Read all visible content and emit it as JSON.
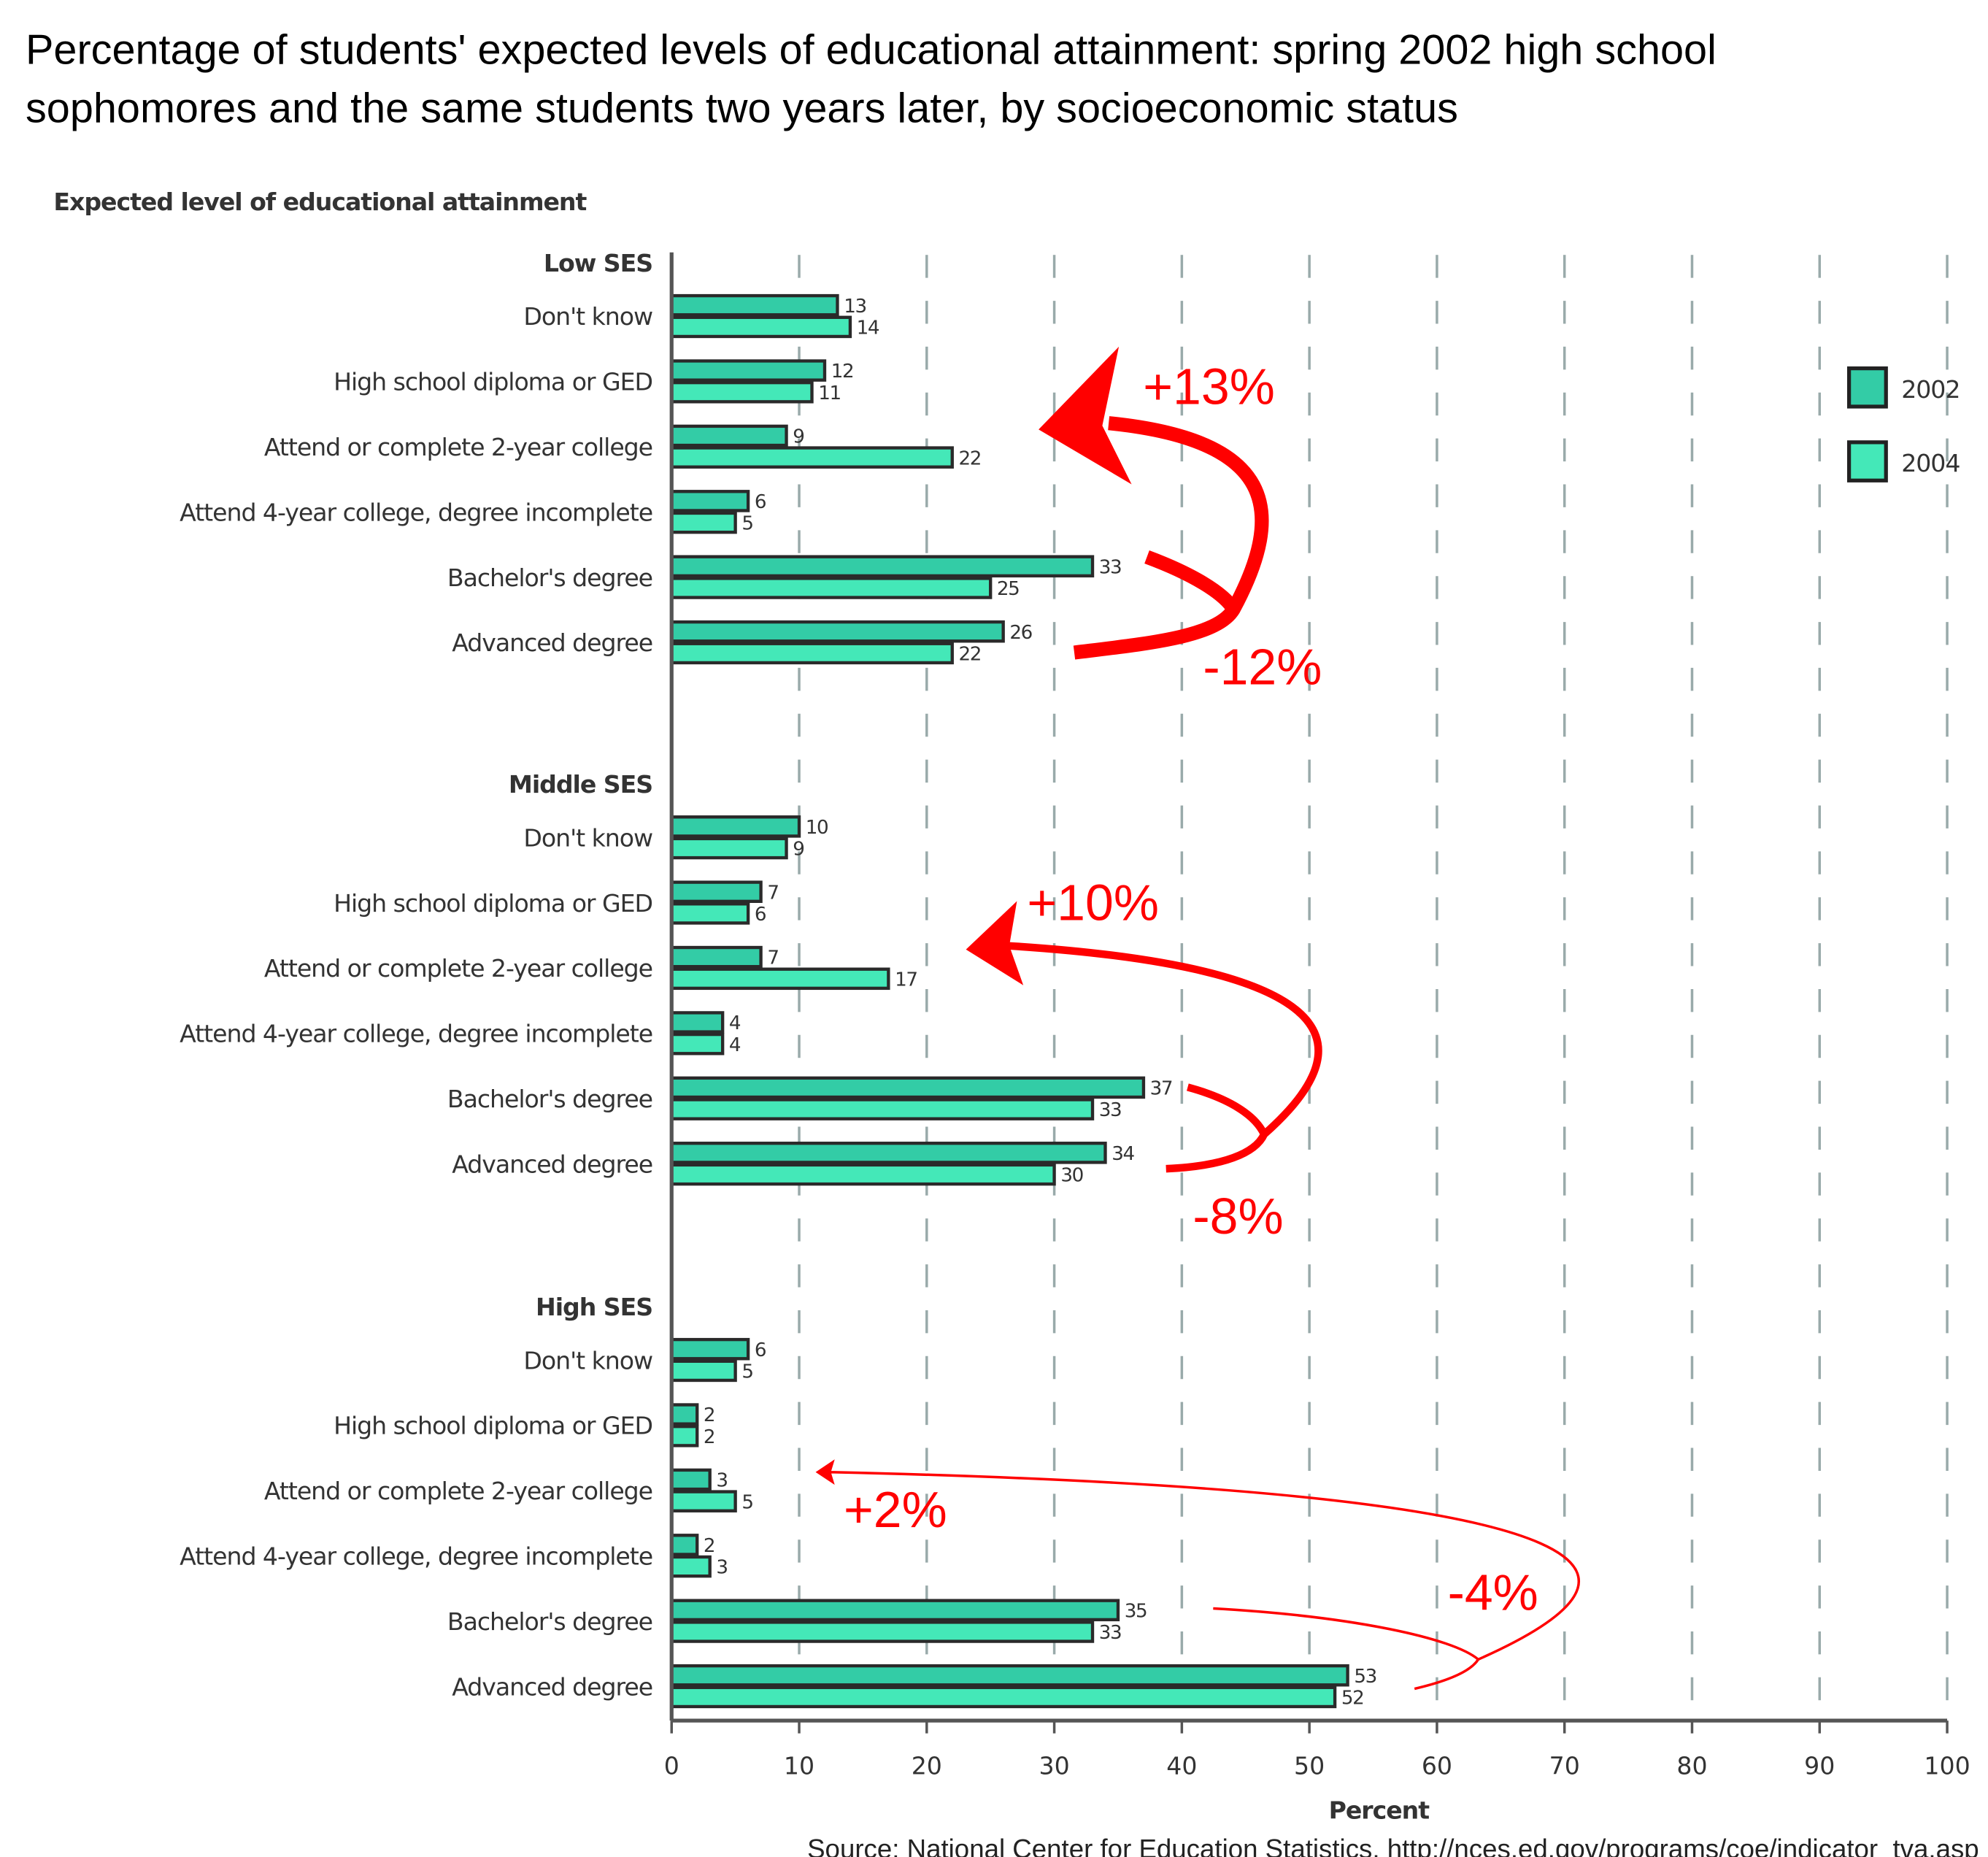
{
  "title_line1": "Percentage of students' expected levels of educational attainment: spring 2002 high school",
  "title_line2": "sophomores and the same students two years later, by socioeconomic status",
  "source": "Source: National Center for Education Statistics, http://nces.ed.gov/programs/coe/indicator_tva.asp",
  "colors": {
    "2002": "#33CCA6",
    "2004": "#44E8B8",
    "annotation": "#FF0000"
  },
  "chart_data": {
    "type": "bar",
    "orientation": "horizontal",
    "ylabel": "Expected level of educational attainment",
    "xlabel": "Percent",
    "xlim": [
      0,
      100
    ],
    "xticks": [
      "0",
      "10",
      "20",
      "30",
      "40",
      "50",
      "60",
      "70",
      "80",
      "90",
      "100"
    ],
    "grid": "vertical dashed",
    "legend": {
      "placement": "right",
      "entries": [
        "2002",
        "2004"
      ]
    },
    "categories": [
      "Don't know",
      "High school diploma or GED",
      "Attend or complete 2-year college",
      "Attend 4-year college, degree incomplete",
      "Bachelor's degree",
      "Advanced degree"
    ],
    "groups": [
      {
        "name": "Low SES",
        "series": [
          {
            "name": "2002",
            "values": [
              13,
              12,
              9,
              6,
              33,
              26
            ]
          },
          {
            "name": "2004",
            "values": [
              14,
              11,
              22,
              5,
              25,
              22
            ]
          }
        ]
      },
      {
        "name": "Middle SES",
        "series": [
          {
            "name": "2002",
            "values": [
              10,
              7,
              7,
              4,
              37,
              34
            ]
          },
          {
            "name": "2004",
            "values": [
              9,
              6,
              17,
              4,
              33,
              30
            ]
          }
        ]
      },
      {
        "name": "High SES",
        "series": [
          {
            "name": "2002",
            "values": [
              6,
              2,
              3,
              2,
              35,
              53
            ]
          },
          {
            "name": "2004",
            "values": [
              5,
              2,
              5,
              3,
              33,
              52
            ]
          }
        ]
      }
    ],
    "annotations": [
      {
        "group": "Low SES",
        "increase": "+13%",
        "decrease": "-12%"
      },
      {
        "group": "Middle SES",
        "increase": "+10%",
        "decrease": "-8%"
      },
      {
        "group": "High SES",
        "increase": "+2%",
        "decrease": "-4%"
      }
    ]
  }
}
